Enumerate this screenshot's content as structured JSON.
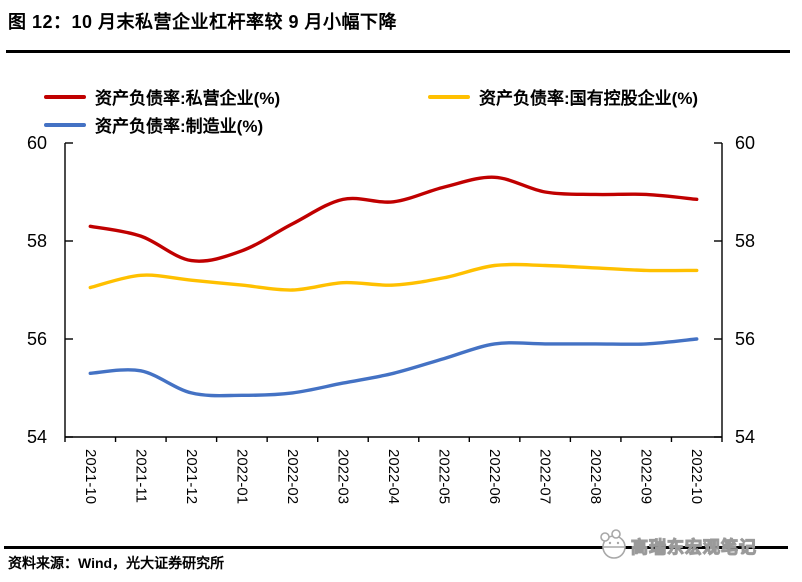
{
  "figure": {
    "title": "图 12：10 月末私营企业杠杆率较 9 月小幅下降",
    "source": "资料来源：Wind，光大证券研究所",
    "watermark": "高瑞东宏观笔记"
  },
  "chart_data": {
    "type": "line",
    "title": "",
    "xlabel": "",
    "ylabel": "",
    "categories": [
      "2021-10",
      "2021-11",
      "2021-12",
      "2022-01",
      "2022-02",
      "2022-03",
      "2022-04",
      "2022-05",
      "2022-06",
      "2022-07",
      "2022-08",
      "2022-09",
      "2022-10"
    ],
    "series": [
      {
        "name": "资产负债率:私营企业(%)",
        "color": "#C00000",
        "values": [
          58.3,
          58.1,
          57.6,
          57.8,
          58.35,
          58.85,
          58.8,
          59.1,
          59.3,
          59.0,
          58.95,
          58.95,
          58.85
        ]
      },
      {
        "name": "资产负债率:国有控股企业(%)",
        "color": "#FFC000",
        "values": [
          57.05,
          57.3,
          57.2,
          57.1,
          57.0,
          57.15,
          57.1,
          57.25,
          57.5,
          57.5,
          57.45,
          57.4,
          57.4
        ]
      },
      {
        "name": "资产负债率:制造业(%)",
        "color": "#4472C4",
        "values": [
          55.3,
          55.35,
          54.9,
          54.85,
          54.9,
          55.1,
          55.3,
          55.6,
          55.9,
          55.9,
          55.9,
          55.9,
          56.0
        ]
      }
    ],
    "ylim": [
      54,
      60
    ],
    "y_ticks": [
      54,
      56,
      58,
      60
    ],
    "grid": false,
    "legend_position": "top",
    "axis_color": "#000000"
  }
}
